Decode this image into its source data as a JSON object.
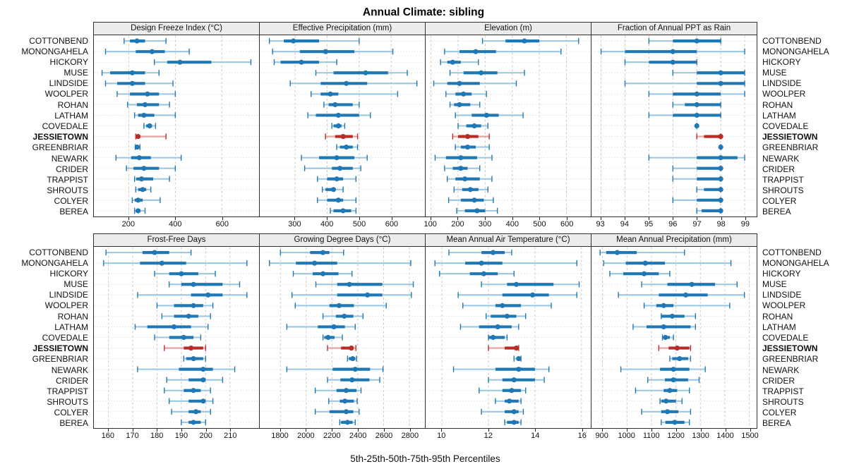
{
  "title": "Annual Climate: sibling",
  "caption": "5th-25th-50th-75th-95th Percentiles",
  "highlight_site": "JESSIETOWN",
  "colors": {
    "accent_blue": "#1f77b4",
    "accent_blue_light": "#9cc6e0",
    "highlight_red": "#b92b27",
    "highlight_red_light": "#e2a09e",
    "strip_bg": "#ececec",
    "grid": "#c8c8c8",
    "row_guide": "#d4d4d4",
    "border": "#2f2f2f"
  },
  "sites": [
    "COTTONBEND",
    "MONONGAHELA",
    "HICKORY",
    "MUSE",
    "LINDSIDE",
    "WOOLPER",
    "ROHAN",
    "LATHAM",
    "COVEDALE",
    "JESSIETOWN",
    "GREENBRIAR",
    "NEWARK",
    "CRIDER",
    "TRAPPIST",
    "SHROUTS",
    "COLYER",
    "BEREA"
  ],
  "percentile_labels": [
    "5th",
    "25th",
    "50th",
    "75th",
    "95th"
  ],
  "chart_data": [
    {
      "type": "dotplot-interval",
      "row": 0,
      "col": 0,
      "title": "Design Freeze Index (°C)",
      "xlim": [
        50,
        760
      ],
      "ticks": [
        200,
        400,
        600
      ],
      "values": [
        [
          180,
          205,
          235,
          270,
          360
        ],
        [
          100,
          230,
          300,
          355,
          460
        ],
        [
          310,
          365,
          420,
          555,
          725
        ],
        [
          85,
          120,
          215,
          270,
          330
        ],
        [
          100,
          150,
          215,
          270,
          390
        ],
        [
          150,
          205,
          280,
          330,
          400
        ],
        [
          195,
          235,
          270,
          330,
          375
        ],
        [
          225,
          240,
          265,
          310,
          400
        ],
        [
          265,
          275,
          290,
          300,
          315
        ],
        [
          230,
          232,
          240,
          250,
          360
        ],
        [
          228,
          230,
          236,
          242,
          248
        ],
        [
          145,
          210,
          245,
          295,
          425
        ],
        [
          190,
          220,
          265,
          330,
          400
        ],
        [
          225,
          232,
          255,
          305,
          375
        ],
        [
          230,
          240,
          260,
          275,
          295
        ],
        [
          215,
          225,
          240,
          260,
          335
        ],
        [
          225,
          230,
          240,
          250,
          270
        ]
      ]
    },
    {
      "type": "dotplot-interval",
      "row": 0,
      "col": 1,
      "title": "Effective Precipitation (mm)",
      "xlim": [
        190,
        705
      ],
      "ticks": [
        300,
        400,
        500,
        600
      ],
      "values": [
        [
          220,
          265,
          295,
          375,
          500
        ],
        [
          230,
          315,
          395,
          485,
          605
        ],
        [
          235,
          255,
          320,
          375,
          430
        ],
        [
          365,
          420,
          520,
          590,
          650
        ],
        [
          285,
          380,
          460,
          525,
          680
        ],
        [
          350,
          380,
          410,
          435,
          620
        ],
        [
          390,
          405,
          425,
          480,
          500
        ],
        [
          340,
          365,
          435,
          500,
          535
        ],
        [
          415,
          420,
          435,
          445,
          455
        ],
        [
          395,
          425,
          450,
          480,
          495
        ],
        [
          430,
          440,
          460,
          480,
          495
        ],
        [
          320,
          375,
          430,
          485,
          525
        ],
        [
          330,
          415,
          440,
          480,
          505
        ],
        [
          370,
          400,
          430,
          450,
          490
        ],
        [
          385,
          395,
          420,
          425,
          450
        ],
        [
          370,
          400,
          435,
          450,
          490
        ],
        [
          410,
          420,
          450,
          475,
          490
        ]
      ]
    },
    {
      "type": "dotplot-interval",
      "row": 0,
      "col": 2,
      "title": "Elevation (m)",
      "xlim": [
        80,
        690
      ],
      "ticks": [
        100,
        200,
        300,
        400,
        500,
        600
      ],
      "values": [
        [
          290,
          375,
          445,
          500,
          645
        ],
        [
          150,
          205,
          265,
          340,
          580
        ],
        [
          135,
          160,
          180,
          210,
          275
        ],
        [
          170,
          220,
          285,
          345,
          445
        ],
        [
          110,
          160,
          205,
          280,
          415
        ],
        [
          155,
          190,
          220,
          250,
          305
        ],
        [
          170,
          185,
          205,
          245,
          280
        ],
        [
          190,
          250,
          305,
          350,
          440
        ],
        [
          200,
          230,
          260,
          285,
          310
        ],
        [
          180,
          200,
          235,
          275,
          315
        ],
        [
          190,
          210,
          235,
          265,
          315
        ],
        [
          115,
          155,
          210,
          270,
          325
        ],
        [
          150,
          180,
          210,
          235,
          280
        ],
        [
          160,
          190,
          225,
          280,
          325
        ],
        [
          185,
          215,
          245,
          275,
          310
        ],
        [
          165,
          210,
          260,
          295,
          330
        ],
        [
          195,
          225,
          270,
          300,
          345
        ]
      ]
    },
    {
      "type": "dotplot-interval",
      "row": 0,
      "col": 3,
      "title": "Fraction of Annual PPT as Rain",
      "xlim": [
        92.6,
        99.5
      ],
      "ticks": [
        93,
        94,
        95,
        96,
        97,
        98,
        99
      ],
      "values": [
        [
          95,
          96,
          97,
          98,
          98
        ],
        [
          93,
          94,
          96,
          97,
          99
        ],
        [
          94,
          95,
          96,
          97,
          97
        ],
        [
          96,
          97,
          98,
          99,
          99
        ],
        [
          94,
          97,
          98,
          99,
          99
        ],
        [
          95,
          96,
          97,
          98,
          99
        ],
        [
          96,
          96.5,
          97,
          98,
          98
        ],
        [
          95,
          96,
          97,
          98,
          98
        ],
        [
          97,
          97,
          97,
          97,
          97
        ],
        [
          97,
          97.3,
          98,
          98,
          98
        ],
        [
          98,
          98,
          98,
          98,
          98
        ],
        [
          95,
          97,
          98,
          98.7,
          99
        ],
        [
          96,
          97,
          98,
          98,
          98
        ],
        [
          96,
          97,
          98,
          98,
          98
        ],
        [
          97,
          97.3,
          98,
          98,
          98
        ],
        [
          96,
          97,
          98,
          98,
          98
        ],
        [
          97,
          97.2,
          98,
          98,
          98
        ]
      ]
    },
    {
      "type": "dotplot-interval",
      "row": 1,
      "col": 0,
      "title": "Frost-Free Days",
      "xlim": [
        154,
        222
      ],
      "ticks": [
        160,
        170,
        180,
        190,
        200,
        210
      ],
      "values": [
        [
          159,
          174,
          179,
          185,
          194
        ],
        [
          158,
          173,
          182,
          192,
          217
        ],
        [
          179,
          185,
          190,
          197,
          204
        ],
        [
          185,
          190,
          195,
          207,
          214
        ],
        [
          172,
          194,
          201,
          207,
          217
        ],
        [
          180,
          187,
          195,
          199,
          203
        ],
        [
          182,
          187,
          193,
          197,
          202
        ],
        [
          171,
          176,
          187,
          194,
          201
        ],
        [
          179,
          185,
          191,
          195,
          198
        ],
        [
          183,
          191,
          194,
          199,
          200
        ],
        [
          191,
          192,
          195,
          199,
          200
        ],
        [
          172,
          189,
          199,
          203,
          212
        ],
        [
          184,
          193,
          199,
          200,
          207
        ],
        [
          183,
          191,
          195,
          198,
          202
        ],
        [
          185,
          193,
          199,
          200,
          203
        ],
        [
          186,
          193,
          196,
          198,
          202
        ],
        [
          190,
          193,
          195,
          198,
          200
        ]
      ]
    },
    {
      "type": "dotplot-interval",
      "row": 1,
      "col": 1,
      "title": "Growing Degree Days (°C)",
      "xlim": [
        1640,
        2920
      ],
      "ticks": [
        1800,
        2000,
        2200,
        2400,
        2600,
        2800
      ],
      "values": [
        [
          1800,
          2030,
          2130,
          2180,
          2290
        ],
        [
          1715,
          1920,
          2065,
          2240,
          2810
        ],
        [
          1900,
          2050,
          2130,
          2250,
          2355
        ],
        [
          2075,
          2240,
          2335,
          2590,
          2830
        ],
        [
          1890,
          2240,
          2475,
          2590,
          2815
        ],
        [
          1915,
          2180,
          2255,
          2370,
          2620
        ],
        [
          2130,
          2230,
          2295,
          2365,
          2440
        ],
        [
          1850,
          2090,
          2215,
          2300,
          2380
        ],
        [
          2130,
          2140,
          2170,
          2220,
          2280
        ],
        [
          2165,
          2270,
          2350,
          2365,
          2385
        ],
        [
          2320,
          2330,
          2360,
          2380,
          2390
        ],
        [
          1850,
          2205,
          2380,
          2495,
          2595
        ],
        [
          2165,
          2265,
          2355,
          2490,
          2570
        ],
        [
          2070,
          2235,
          2310,
          2390,
          2425
        ],
        [
          2175,
          2260,
          2300,
          2370,
          2395
        ],
        [
          2070,
          2180,
          2310,
          2365,
          2410
        ],
        [
          2260,
          2270,
          2320,
          2360,
          2380
        ]
      ]
    },
    {
      "type": "dotplot-interval",
      "row": 1,
      "col": 2,
      "title": "Mean Annual Air Temperature (°C)",
      "xlim": [
        9.3,
        16.4
      ],
      "ticks": [
        10,
        12,
        14,
        16
      ],
      "values": [
        [
          10.3,
          11.7,
          12.2,
          12.7,
          13.0
        ],
        [
          9.7,
          11.0,
          11.7,
          12.6,
          15.8
        ],
        [
          9.9,
          11.2,
          11.8,
          12.4,
          13.1
        ],
        [
          11.7,
          12.8,
          13.2,
          14.8,
          15.9
        ],
        [
          10.7,
          12.6,
          13.9,
          14.6,
          15.8
        ],
        [
          10.9,
          12.3,
          12.6,
          13.4,
          14.7
        ],
        [
          11.9,
          12.1,
          12.8,
          13.2,
          13.6
        ],
        [
          10.8,
          11.6,
          12.4,
          13.0,
          13.3
        ],
        [
          12.0,
          12.0,
          12.2,
          12.7,
          12.8
        ],
        [
          12.0,
          12.7,
          13.2,
          13.3,
          13.3
        ],
        [
          13.1,
          13.2,
          13.3,
          13.3,
          13.4
        ],
        [
          10.5,
          12.3,
          13.3,
          14.0,
          14.6
        ],
        [
          12.0,
          12.6,
          13.1,
          14.0,
          14.4
        ],
        [
          11.6,
          12.6,
          13.0,
          13.4,
          13.6
        ],
        [
          12.3,
          12.7,
          12.9,
          13.3,
          13.4
        ],
        [
          11.7,
          12.7,
          13.1,
          13.3,
          13.5
        ],
        [
          12.7,
          12.8,
          13.1,
          13.3,
          13.4
        ]
      ]
    },
    {
      "type": "dotplot-interval",
      "row": 1,
      "col": 3,
      "title": "Mean Annual Precipitation (mm)",
      "xlim": [
        855,
        1530
      ],
      "ticks": [
        900,
        1000,
        1100,
        1200,
        1300,
        1400,
        1500
      ],
      "values": [
        [
          890,
          915,
          960,
          1040,
          1235
        ],
        [
          905,
          995,
          1075,
          1155,
          1425
        ],
        [
          930,
          985,
          1070,
          1130,
          1175
        ],
        [
          1060,
          1165,
          1265,
          1360,
          1450
        ],
        [
          965,
          1130,
          1240,
          1330,
          1480
        ],
        [
          1070,
          1120,
          1150,
          1190,
          1420
        ],
        [
          1140,
          1140,
          1185,
          1235,
          1280
        ],
        [
          1025,
          1080,
          1150,
          1260,
          1280
        ],
        [
          1145,
          1150,
          1157,
          1175,
          1190
        ],
        [
          1130,
          1170,
          1205,
          1255,
          1260
        ],
        [
          1175,
          1185,
          1215,
          1250,
          1260
        ],
        [
          975,
          1135,
          1190,
          1255,
          1320
        ],
        [
          1085,
          1155,
          1190,
          1250,
          1295
        ],
        [
          1035,
          1150,
          1175,
          1205,
          1255
        ],
        [
          1135,
          1140,
          1160,
          1200,
          1225
        ],
        [
          1060,
          1140,
          1165,
          1210,
          1260
        ],
        [
          1140,
          1157,
          1195,
          1235,
          1255
        ]
      ]
    }
  ]
}
